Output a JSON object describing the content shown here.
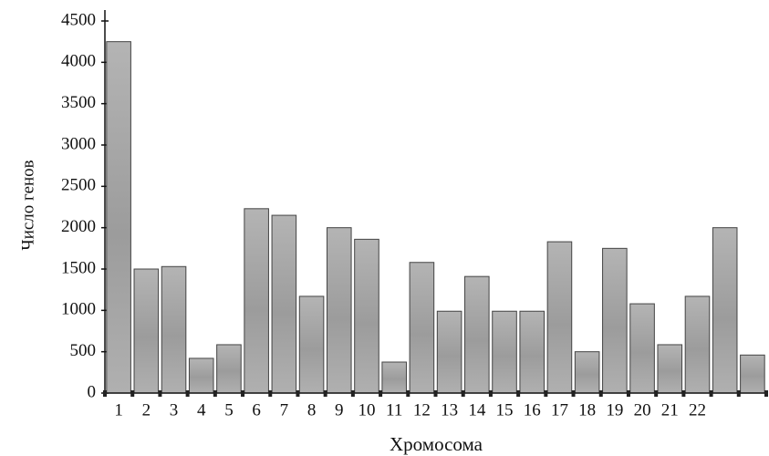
{
  "chart_data": {
    "type": "bar",
    "categories": [
      "1",
      "2",
      "3",
      "4",
      "5",
      "6",
      "7",
      "8",
      "9",
      "10",
      "11",
      "12",
      "13",
      "14",
      "15",
      "16",
      "17",
      "18",
      "19",
      "20",
      "21",
      "22",
      null,
      null
    ],
    "values": [
      4250,
      1500,
      1530,
      420,
      585,
      2230,
      2150,
      1170,
      2000,
      1860,
      375,
      1580,
      990,
      1410,
      990,
      990,
      1830,
      500,
      1750,
      1080,
      585,
      1170,
      2000,
      460
    ],
    "color": "#a9a9a9",
    "xlabel": "Хромосома",
    "ylabel": "Число генов",
    "ylim": [
      0,
      4500
    ],
    "yticks": [
      0,
      500,
      1000,
      1500,
      2000,
      2500,
      3000,
      3500,
      4000,
      4500
    ],
    "grid": false
  }
}
